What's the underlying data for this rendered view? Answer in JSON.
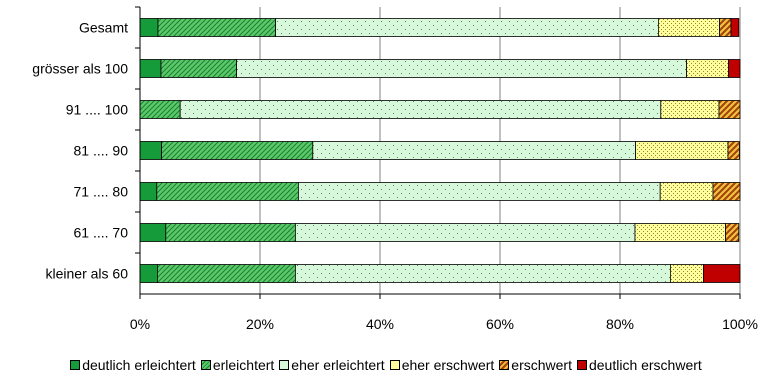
{
  "chart_data": {
    "type": "bar",
    "orientation": "horizontal",
    "stacked": "percent",
    "categories": [
      "Gesamt",
      "grösser als 100",
      "91 .... 100",
      "81 .... 90",
      "71 .... 80",
      "61 .... 70",
      "kleiner als 60"
    ],
    "series": [
      {
        "name": "deutlich erleichtert",
        "color": "#169b3a",
        "pattern": "solid",
        "values": [
          3,
          3.5,
          0,
          3.6,
          2.8,
          4.3,
          2.9
        ]
      },
      {
        "name": "erleichtert",
        "color": "#5bc86a",
        "pattern": "diagonal",
        "values": [
          19.6,
          12.6,
          6.7,
          25.2,
          23.6,
          21.6,
          23
        ]
      },
      {
        "name": "eher erleichtert",
        "color": "#d8f8dc",
        "pattern": "dots",
        "values": [
          63.8,
          75,
          80.1,
          53.8,
          60.3,
          56.6,
          62.5
        ]
      },
      {
        "name": "eher erschwert",
        "color": "#ffffa0",
        "pattern": "dots",
        "values": [
          10.2,
          7,
          9.7,
          15.4,
          8.8,
          15.1,
          5.5
        ]
      },
      {
        "name": "erschwert",
        "color": "#e0a030",
        "pattern": "stripes",
        "values": [
          1.9,
          0,
          3.5,
          1.9,
          4.5,
          2.2,
          0
        ]
      },
      {
        "name": "deutlich erschwert",
        "color": "#c00000",
        "pattern": "solid",
        "values": [
          1.3,
          1.9,
          0,
          0,
          0,
          0,
          6.1
        ]
      }
    ],
    "xlim": [
      0,
      100
    ],
    "xticks": [
      "0%",
      "20%",
      "40%",
      "60%",
      "80%",
      "100%"
    ],
    "grid": "vertical",
    "legend": "bottom"
  }
}
